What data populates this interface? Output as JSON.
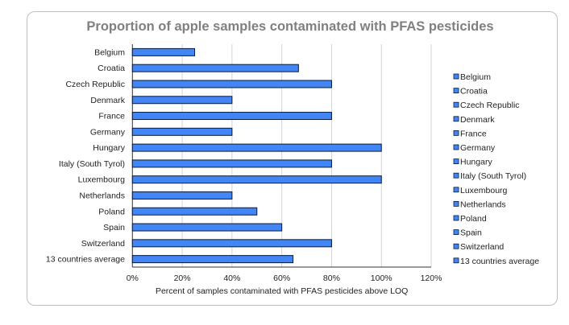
{
  "chart_data": {
    "type": "bar",
    "orientation": "horizontal",
    "title": "Proportion of apple samples contaminated with PFAS pesticides",
    "xlabel": "Percent of samples contaminated with PFAS pesticides above LOQ",
    "ylabel": "",
    "xlim": [
      0,
      120
    ],
    "xticks": [
      "0%",
      "20%",
      "40%",
      "60%",
      "80%",
      "100%",
      "120%"
    ],
    "grid": true,
    "legend_placement": "right",
    "bar_color": "#4285f4",
    "bar_edge_color": "#0a1a3a",
    "categories": [
      "Belgium",
      "Croatia",
      "Czech Republic",
      "Denmark",
      "France",
      "Germany",
      "Hungary",
      "Italy (South Tyrol)",
      "Luxembourg",
      "Netherlands",
      "Poland",
      "Spain",
      "Switzerland",
      "13 countries average"
    ],
    "values": [
      25,
      66.7,
      80,
      40,
      80,
      40,
      100,
      80,
      100,
      40,
      50,
      60,
      80,
      64.5
    ]
  }
}
